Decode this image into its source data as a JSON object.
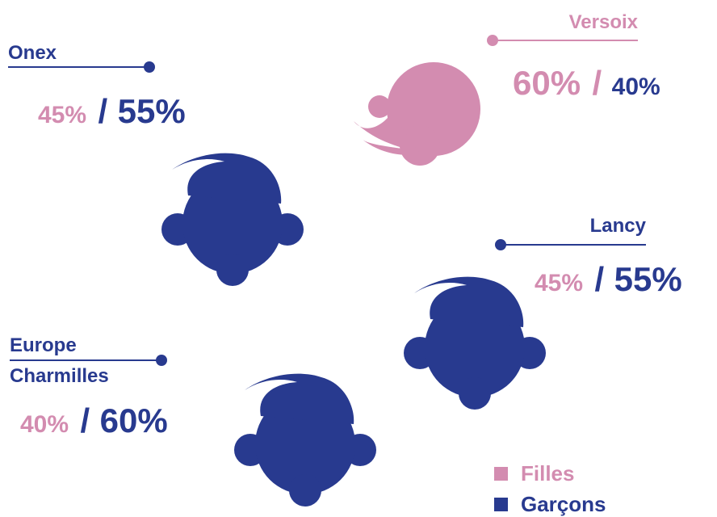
{
  "locations": [
    {
      "name": [
        "Onex"
      ],
      "girls": "45%",
      "separator": "/",
      "boys": "55%"
    },
    {
      "name": [
        "Versoix"
      ],
      "girls": "60%",
      "separator": "/",
      "boys": "40%"
    },
    {
      "name": [
        "Lancy"
      ],
      "girls": "45%",
      "separator": "/",
      "boys": "55%"
    },
    {
      "name": [
        "Europe",
        "Charmilles"
      ],
      "girls": "40%",
      "separator": "/",
      "boys": "60%"
    }
  ],
  "legend": [
    {
      "label": "Filles",
      "color": "#d38cb0"
    },
    {
      "label": "Garçons",
      "color": "#283a8f"
    }
  ]
}
